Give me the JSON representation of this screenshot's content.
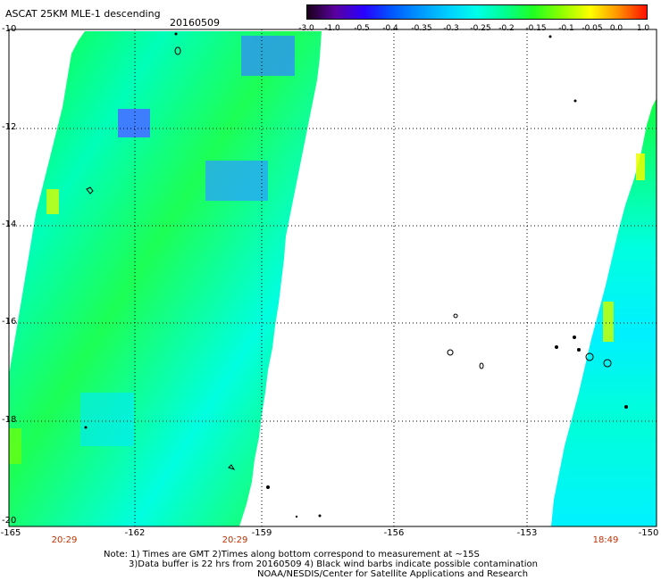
{
  "header": {
    "title": "ASCAT 25KM MLE-1 descending",
    "date": "20160509"
  },
  "colorbar": {
    "labels": [
      "-3.0",
      "-1.0",
      "-0.5",
      "-0.4",
      "-0.35",
      "-0.3",
      "-0.25",
      "-0.2",
      "-0.15",
      "-0.1",
      "-0.05",
      "0.0",
      "1.0"
    ],
    "colors": [
      "#1a001a",
      "#5a00a0",
      "#2a00ff",
      "#0058ff",
      "#0098ff",
      "#00d0ff",
      "#00ffe8",
      "#00ff90",
      "#20ff20",
      "#90ff00",
      "#ffff00",
      "#ff9000",
      "#ff1000"
    ]
  },
  "axes": {
    "x_ticks": [
      "-165",
      "-162",
      "-159",
      "-156",
      "-153",
      "-150"
    ],
    "y_ticks": [
      "-10",
      "-12",
      "-14",
      "-16",
      "-18",
      "-20"
    ],
    "grid": "dotted"
  },
  "swath_times": [
    "20:29",
    "20:29",
    "18:49"
  ],
  "notes": {
    "line1": "Note: 1) Times are GMT 2)Times along bottom correspond to measurement at ~15S",
    "line2": "3)Data buffer is 22 hrs from 20160509 4) Black wind barbs indicate possible contamination",
    "line3": "NOAA/NESDIS/Center for Satellite Applications and Research"
  }
}
